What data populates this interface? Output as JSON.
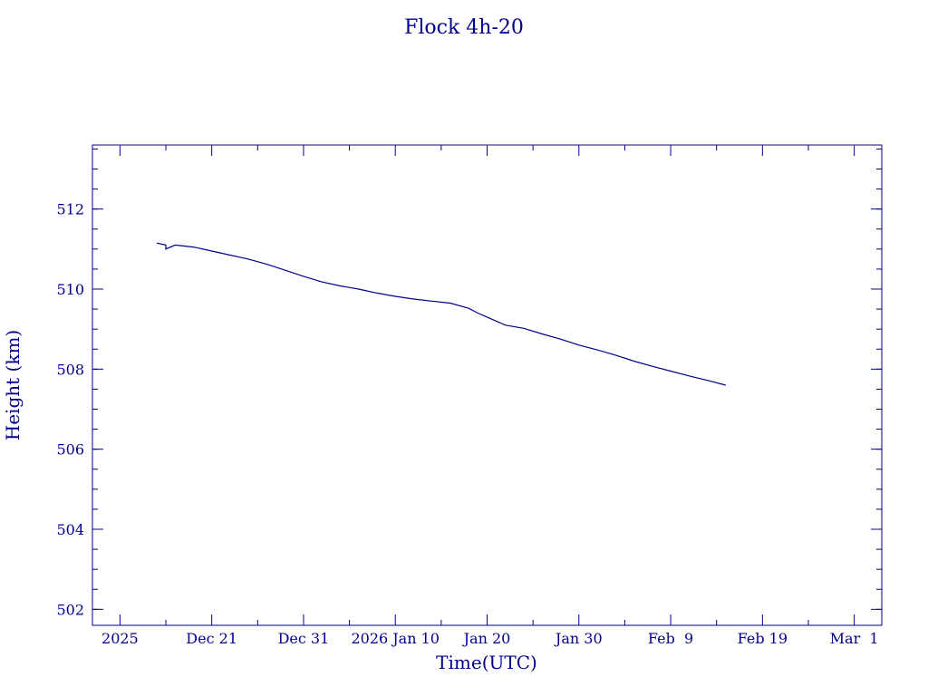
{
  "chart_data": {
    "type": "line",
    "title": "Flock 4h-20",
    "xlabel": "Time(UTC)",
    "ylabel": "Height (km)",
    "x_type": "date",
    "xlim": [
      "2025-12-08",
      "2026-03-04"
    ],
    "ylim": [
      501.6,
      513.6
    ],
    "grid": false,
    "legend": "none",
    "colors": {
      "line": "#00008b",
      "axes": "#00008b",
      "background": "#ffffff"
    },
    "x_ticks": [
      {
        "date": "2025-12-11",
        "label": "2025"
      },
      {
        "date": "2025-12-21",
        "label": "Dec 21"
      },
      {
        "date": "2025-12-31",
        "label": "Dec 31"
      },
      {
        "date": "2026-01-10",
        "label": "2026 Jan 10"
      },
      {
        "date": "2026-01-20",
        "label": "Jan 20"
      },
      {
        "date": "2026-01-30",
        "label": "Jan 30"
      },
      {
        "date": "2026-02-09",
        "label": "Feb  9"
      },
      {
        "date": "2026-02-19",
        "label": "Feb 19"
      },
      {
        "date": "2026-03-01",
        "label": "Mar  1"
      }
    ],
    "x_minor_ticks": [
      "2025-12-16",
      "2025-12-26",
      "2026-01-05",
      "2026-01-15",
      "2026-01-25",
      "2026-02-04",
      "2026-02-14",
      "2026-02-24"
    ],
    "y_ticks": [
      502,
      504,
      506,
      508,
      510,
      512
    ],
    "y_minor_step": 0.5,
    "series": [
      {
        "x": [
          "2025-12-15",
          "2025-12-16",
          "2025-12-16",
          "2025-12-17",
          "2025-12-19",
          "2025-12-21",
          "2025-12-23",
          "2025-12-25",
          "2025-12-27",
          "2025-12-29",
          "2025-12-31",
          "2026-01-02",
          "2026-01-04",
          "2026-01-06",
          "2026-01-08",
          "2026-01-10",
          "2026-01-12",
          "2026-01-14",
          "2026-01-16",
          "2026-01-18",
          "2026-01-19",
          "2026-01-20",
          "2026-01-22",
          "2026-01-24",
          "2026-01-26",
          "2026-01-28",
          "2026-01-30",
          "2026-02-01",
          "2026-02-03",
          "2026-02-05",
          "2026-02-07",
          "2026-02-09",
          "2026-02-11",
          "2026-02-13",
          "2026-02-15"
        ],
        "y": [
          511.15,
          511.1,
          511.0,
          511.1,
          511.05,
          510.95,
          510.85,
          510.75,
          510.62,
          510.47,
          510.32,
          510.18,
          510.08,
          510.0,
          509.9,
          509.82,
          509.75,
          509.7,
          509.65,
          509.52,
          509.4,
          509.3,
          509.1,
          509.02,
          508.88,
          508.75,
          508.6,
          508.48,
          508.35,
          508.2,
          508.07,
          507.95,
          507.83,
          507.72,
          507.6
        ]
      }
    ]
  }
}
